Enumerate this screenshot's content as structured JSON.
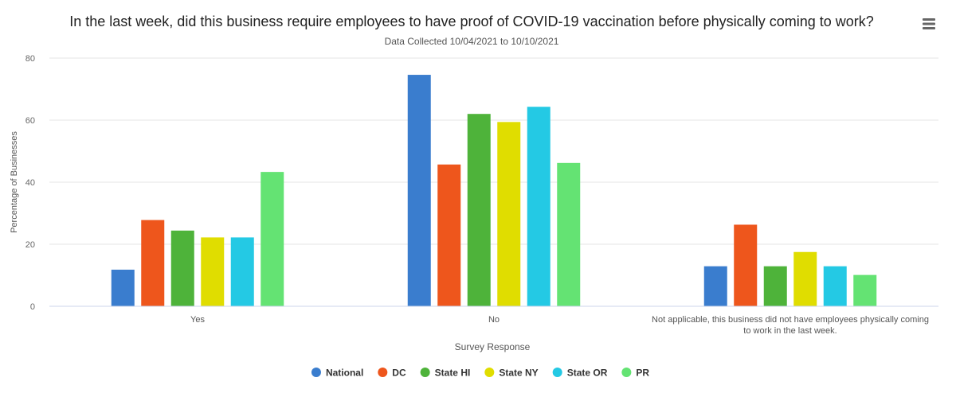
{
  "chart_data": {
    "type": "bar",
    "title": "In the last week, did this business require employees to have proof of COVID-19 vaccination before physically coming to work?",
    "subtitle": "Data Collected 10/04/2021 to 10/10/2021",
    "xlabel": "Survey Response",
    "ylabel": "Percentage of Businesses",
    "ylim": [
      0,
      80
    ],
    "yticks": [
      0,
      20,
      40,
      60,
      80
    ],
    "grid": true,
    "legend_position": "bottom-center",
    "categories": [
      "Yes",
      "No",
      "Not applicable, this business did not have employees physically coming to work in the last week."
    ],
    "category_label_lines": [
      [
        "Yes"
      ],
      [
        "No"
      ],
      [
        "Not applicable, this business did not have employees physically coming",
        "to work in the last week."
      ]
    ],
    "series": [
      {
        "name": "National",
        "color": "#3a7dce",
        "values": [
          11.8,
          74.6,
          12.9
        ]
      },
      {
        "name": "DC",
        "color": "#ee561c",
        "values": [
          27.8,
          45.7,
          26.3
        ]
      },
      {
        "name": "State HI",
        "color": "#4eb33a",
        "values": [
          24.4,
          62.0,
          12.9
        ]
      },
      {
        "name": "State NY",
        "color": "#e0dd00",
        "values": [
          22.2,
          59.4,
          17.5
        ]
      },
      {
        "name": "State OR",
        "color": "#24c9e4",
        "values": [
          22.2,
          64.3,
          12.9
        ]
      },
      {
        "name": "PR",
        "color": "#64e373",
        "values": [
          43.3,
          46.2,
          10.1
        ]
      }
    ]
  },
  "menu_icon": "hamburger-menu-icon"
}
